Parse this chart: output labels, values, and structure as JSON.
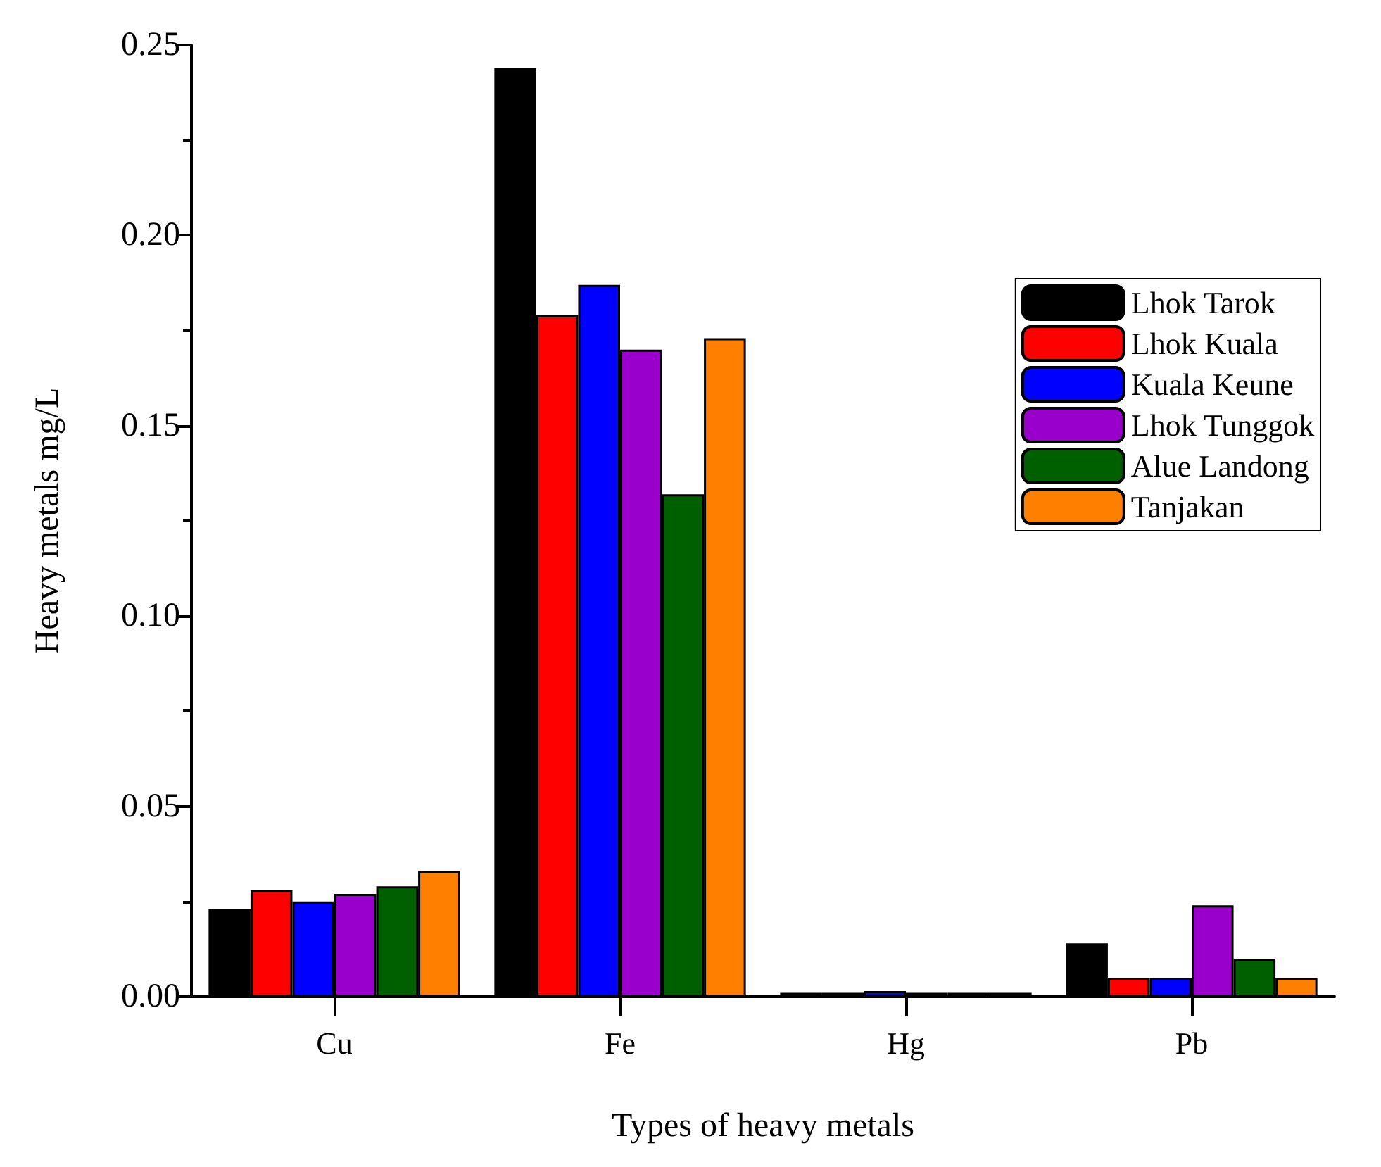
{
  "chart_data": {
    "type": "bar",
    "xlabel": "Types of heavy metals",
    "ylabel": "Heavy metals mg/L",
    "categories": [
      "Cu",
      "Fe",
      "Hg",
      "Pb"
    ],
    "series": [
      {
        "name": "Lhok Tarok",
        "color": "#000000",
        "values": [
          0.023,
          0.244,
          0.001,
          0.014
        ]
      },
      {
        "name": "Lhok Kuala",
        "color": "#ff0000",
        "values": [
          0.028,
          0.179,
          0.001,
          0.005
        ]
      },
      {
        "name": "Kuala Keune",
        "color": "#0000ff",
        "values": [
          0.025,
          0.187,
          0.0015,
          0.005
        ]
      },
      {
        "name": "Lhok Tunggok",
        "color": "#9900cc",
        "values": [
          0.027,
          0.17,
          0.001,
          0.024
        ]
      },
      {
        "name": "Alue Landong",
        "color": "#006000",
        "values": [
          0.029,
          0.132,
          0.001,
          0.01
        ]
      },
      {
        "name": "Tanjakan",
        "color": "#ff8000",
        "values": [
          0.033,
          0.173,
          0.001,
          0.005
        ]
      }
    ],
    "ylim": [
      0,
      0.25
    ],
    "yticks": [
      {
        "value": 0,
        "label": "0.00"
      },
      {
        "value": 0.05,
        "label": "0.05"
      },
      {
        "value": 0.1,
        "label": "0.10"
      },
      {
        "value": 0.15,
        "label": "0.15"
      },
      {
        "value": 0.2,
        "label": "0.20"
      },
      {
        "value": 0.25,
        "label": "0.25"
      }
    ],
    "grid": false,
    "legend": "top right"
  }
}
